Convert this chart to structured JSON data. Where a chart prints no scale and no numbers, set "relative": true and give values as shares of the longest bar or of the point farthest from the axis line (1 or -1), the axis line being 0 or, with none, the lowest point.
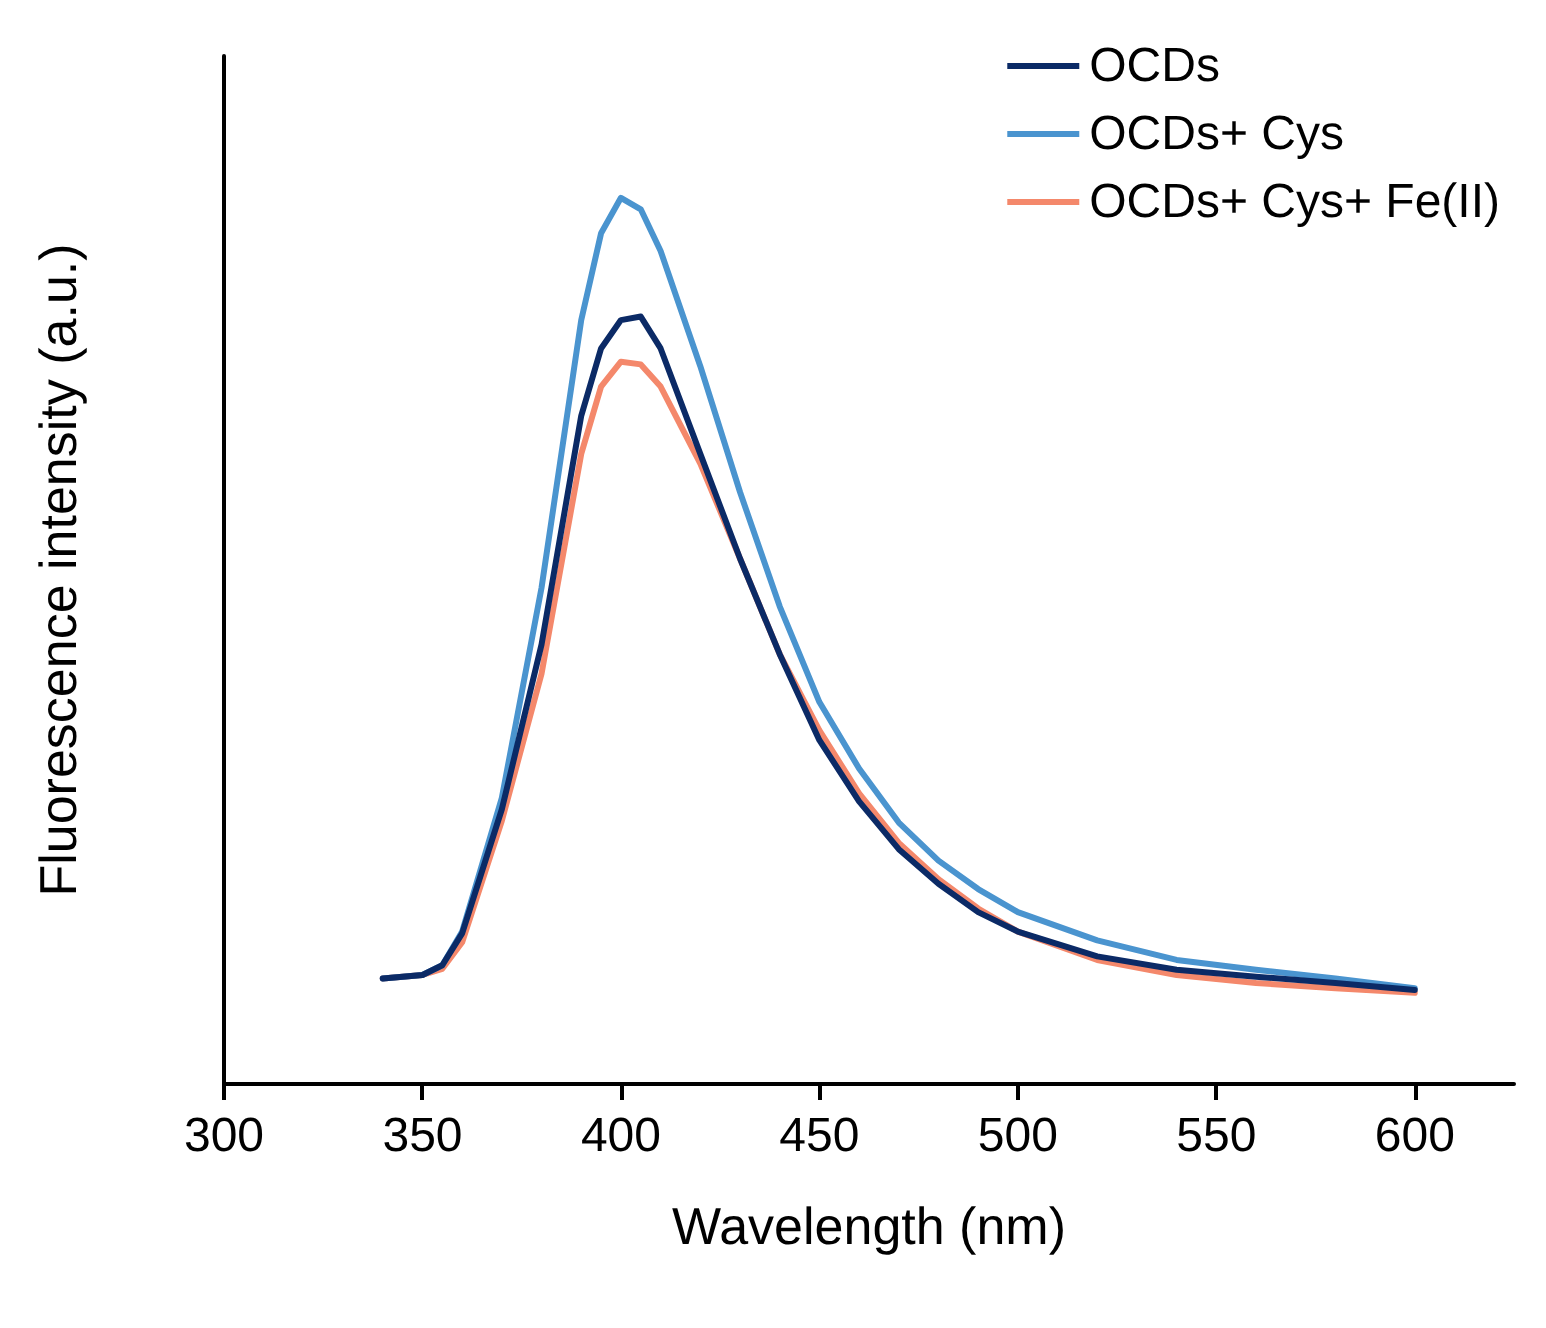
{
  "chart_data": {
    "type": "line",
    "xlabel": "Wavelength (nm)",
    "ylabel": "Fluorescence intensity (a.u.)",
    "relative": true,
    "xlim": [
      300,
      625
    ],
    "xticks": [
      300,
      350,
      400,
      450,
      500,
      550,
      600
    ],
    "grid": false,
    "legend": "top right",
    "marker": "none",
    "line_style": "solid",
    "x": [
      340,
      350,
      355,
      360,
      370,
      380,
      390,
      395,
      400,
      405,
      410,
      420,
      430,
      440,
      450,
      460,
      470,
      480,
      490,
      500,
      520,
      540,
      560,
      580,
      600
    ],
    "series": [
      {
        "name": "OCDs",
        "color": "#0b2a66",
        "values": [
          0.119,
          0.123,
          0.134,
          0.17,
          0.31,
          0.496,
          0.754,
          0.83,
          0.862,
          0.866,
          0.83,
          0.711,
          0.593,
          0.485,
          0.388,
          0.319,
          0.265,
          0.226,
          0.194,
          0.172,
          0.144,
          0.129,
          0.121,
          0.114,
          0.106
        ]
      },
      {
        "name": "OCDs+ Cys",
        "color": "#4a94cf",
        "values": [
          0.119,
          0.123,
          0.134,
          0.172,
          0.323,
          0.56,
          0.862,
          0.96,
          1,
          0.987,
          0.94,
          0.81,
          0.668,
          0.539,
          0.431,
          0.356,
          0.295,
          0.252,
          0.22,
          0.194,
          0.162,
          0.14,
          0.129,
          0.119,
          0.108
        ]
      },
      {
        "name": "OCDs+ Cys+ Fe(II)",
        "color": "#f4886b",
        "values": [
          0.119,
          0.123,
          0.13,
          0.16,
          0.297,
          0.463,
          0.711,
          0.787,
          0.815,
          0.812,
          0.787,
          0.7,
          0.593,
          0.485,
          0.399,
          0.328,
          0.272,
          0.231,
          0.198,
          0.172,
          0.14,
          0.123,
          0.114,
          0.108,
          0.103
        ]
      }
    ]
  }
}
